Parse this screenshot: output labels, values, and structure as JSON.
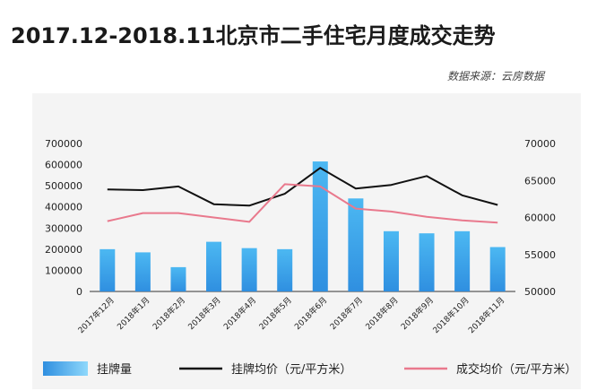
{
  "title": "2017.12-2018.11北京市二手住宅月度成交走势",
  "source": "数据来源：云房数据",
  "chart_data": {
    "type": "bar+line",
    "categories": [
      "2017年12月",
      "2018年1月",
      "2018年2月",
      "2018年3月",
      "2018年4月",
      "2018年5月",
      "2018年6月",
      "2018年7月",
      "2018年8月",
      "2018年9月",
      "2018年10月",
      "2018年11月"
    ],
    "left_axis": {
      "ylim": [
        0,
        700000
      ],
      "ticks": [
        0,
        100000,
        200000,
        300000,
        400000,
        500000,
        600000,
        700000
      ]
    },
    "right_axis": {
      "ylim": [
        50000,
        70000
      ],
      "ticks": [
        50000,
        55000,
        60000,
        65000,
        70000
      ]
    },
    "series": [
      {
        "name": "挂牌量",
        "type": "bar",
        "axis": "left",
        "color": "#3aa0ea",
        "values": [
          200000,
          185000,
          115000,
          235000,
          205000,
          200000,
          615000,
          440000,
          285000,
          275000,
          285000,
          210000
        ]
      },
      {
        "name": "挂牌均价（元/平方米）",
        "type": "line",
        "axis": "right",
        "color": "#111111",
        "values": [
          63800,
          63700,
          64200,
          61800,
          61600,
          63200,
          66700,
          63900,
          64400,
          65600,
          63000,
          61700
        ]
      },
      {
        "name": "成交均价（元/平方米）",
        "type": "line",
        "axis": "right",
        "color": "#e9798d",
        "values": [
          59500,
          60600,
          60600,
          60000,
          59400,
          64500,
          64200,
          61200,
          60800,
          60100,
          59600,
          59300
        ]
      }
    ],
    "grid": false,
    "legend": "bottom"
  }
}
